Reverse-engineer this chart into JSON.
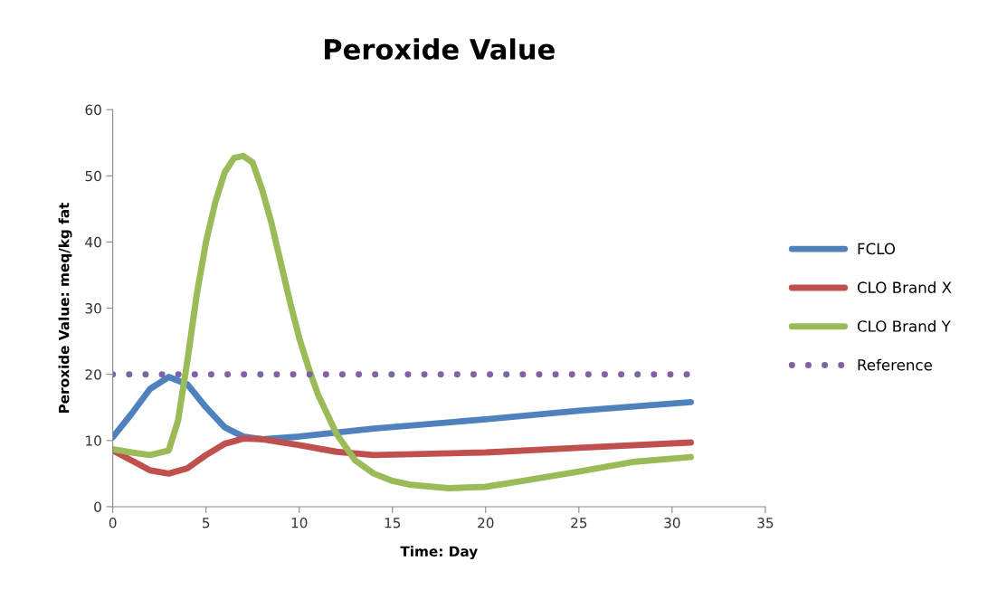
{
  "chart_data": {
    "type": "line",
    "title": "Peroxide Value",
    "xlabel": "Time: Day",
    "ylabel": "Peroxide Value: meq/kg fat",
    "xlim": [
      0,
      35
    ],
    "xticks": [
      0,
      5,
      10,
      15,
      20,
      25,
      30,
      35
    ],
    "ylim": [
      0,
      60
    ],
    "yticks": [
      0,
      10,
      20,
      30,
      40,
      50,
      60
    ],
    "grid": false,
    "legend": "right",
    "marker": "none",
    "series": [
      {
        "name": "FCLO",
        "color": "#4f81bd",
        "x": [
          0,
          1,
          2,
          3,
          4,
          5,
          6,
          7,
          8,
          10,
          14,
          20,
          25,
          31
        ],
        "values": [
          10.5,
          14,
          17.8,
          19.6,
          18.5,
          15,
          12,
          10.6,
          10.2,
          10.6,
          11.8,
          13.2,
          14.5,
          15.8
        ]
      },
      {
        "name": "CLO Brand X",
        "color": "#c0504d",
        "x": [
          0,
          1,
          2,
          3,
          4,
          5,
          6,
          7,
          8,
          10,
          12,
          14,
          20,
          25,
          31
        ],
        "values": [
          8.5,
          7,
          5.5,
          5,
          5.8,
          7.8,
          9.5,
          10.3,
          10.2,
          9.3,
          8.3,
          7.8,
          8.2,
          8.9,
          9.7
        ]
      },
      {
        "name": "CLO Brand Y",
        "color": "#9bbb59",
        "x": [
          0,
          1,
          2,
          3,
          3.5,
          4,
          4.5,
          5,
          5.5,
          6,
          6.5,
          7,
          7.5,
          8,
          8.5,
          9,
          9.5,
          10,
          10.5,
          11,
          12,
          13,
          14,
          15,
          16,
          18,
          20,
          22,
          25,
          28,
          31
        ],
        "values": [
          8.7,
          8.2,
          7.8,
          8.5,
          13,
          22,
          32,
          40,
          46,
          50.5,
          52.7,
          53,
          52,
          48,
          43,
          37,
          31,
          25.5,
          21,
          17,
          11,
          7,
          5,
          3.9,
          3.3,
          2.8,
          3,
          3.9,
          5.3,
          6.8,
          7.5
        ]
      },
      {
        "name": "Reference",
        "color": "#8064a2",
        "line_style": "dotted",
        "x": [
          0,
          31
        ],
        "values": [
          20,
          20
        ]
      }
    ]
  }
}
